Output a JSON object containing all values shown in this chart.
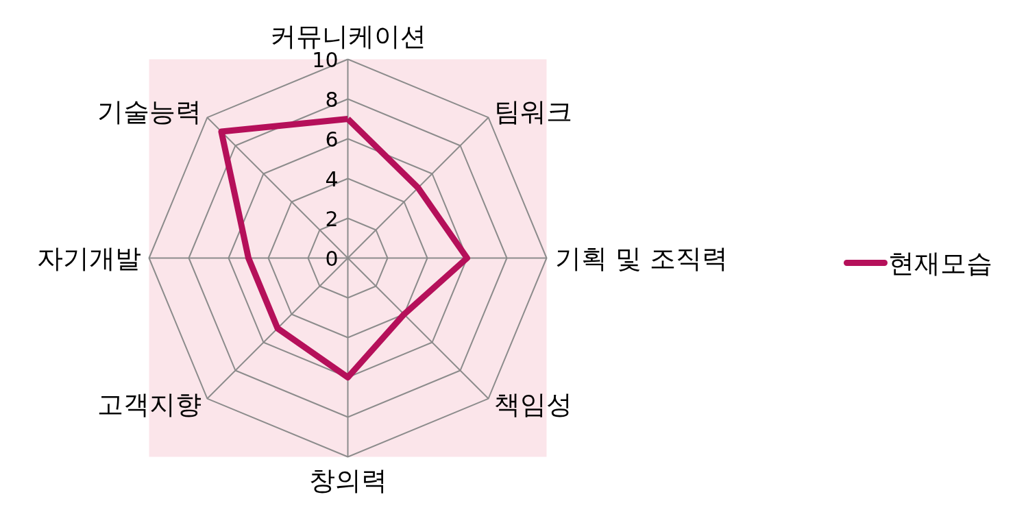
{
  "chart_data": {
    "type": "radar",
    "categories": [
      "커뮤니케이션",
      "팀워크",
      "기획 및 조직력",
      "책임성",
      "창의력",
      "고객지향",
      "자기개발",
      "기술능력"
    ],
    "series": [
      {
        "name": "현재모습",
        "color": "#b5105a",
        "values": [
          7,
          5,
          6,
          4,
          6,
          5,
          5,
          9
        ]
      }
    ],
    "ylim": [
      0,
      10
    ],
    "yticks": [
      0,
      2,
      4,
      6,
      8,
      10
    ],
    "grid": true,
    "legend": "right",
    "marker": "none",
    "line_style": "solid"
  }
}
